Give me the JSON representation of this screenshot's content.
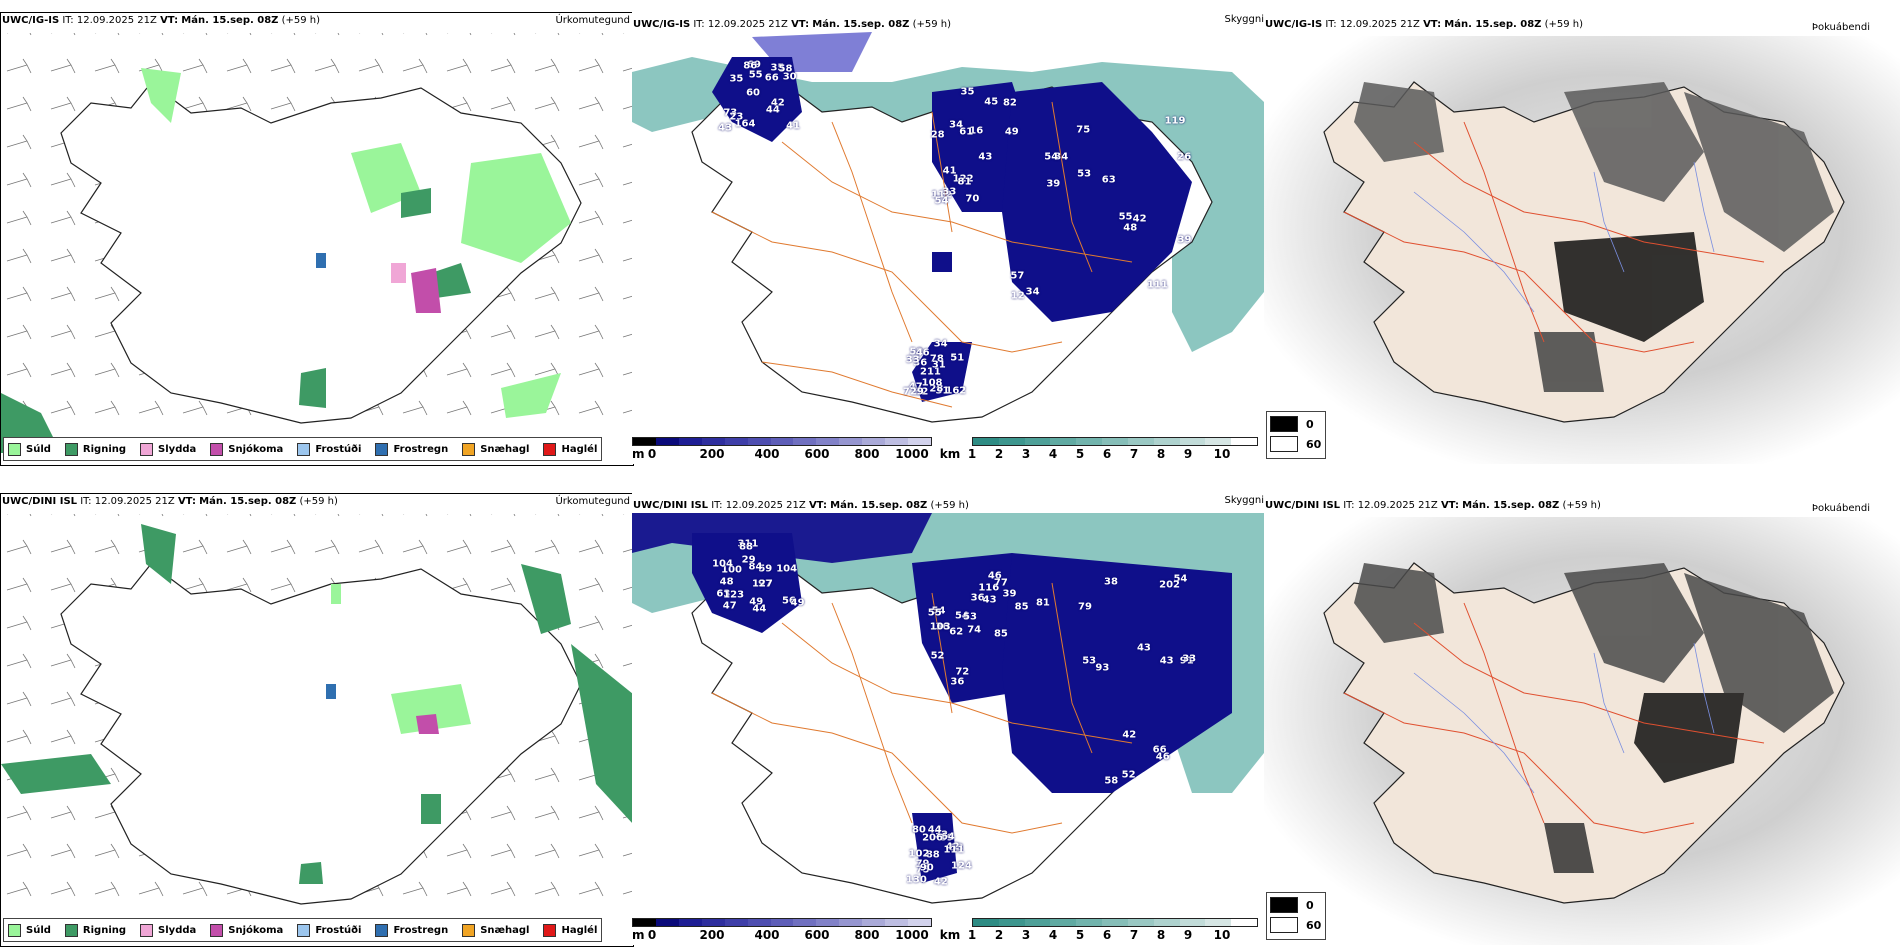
{
  "rows": [
    {
      "model": "UWC/IG-IS",
      "it_label": "IT:",
      "it": "12.09.2025 21Z",
      "vt_label": "VT:",
      "vt": "Mán. 15.sep. 08Z",
      "lead": "(+59 h)",
      "vis_numbers": [
        "41",
        "28",
        "119",
        "211",
        "66",
        "112",
        "75",
        "78",
        "73",
        "34",
        "57",
        "32",
        "55",
        "16",
        "42",
        "59",
        "69",
        "49",
        "55",
        "51",
        "60",
        "122",
        "53",
        "46",
        "35",
        "41",
        "111",
        "162",
        "42",
        "70",
        "34",
        "36",
        "44",
        "33",
        "26",
        "31",
        "43",
        "81",
        "63",
        "47",
        "30",
        "82",
        "48",
        "31",
        "23",
        "54",
        "12",
        "28",
        "58",
        "35",
        "39",
        "33",
        "35",
        "45",
        "34",
        "34",
        "86",
        "61",
        "39",
        "108",
        "164",
        "43",
        "54",
        "729"
      ],
      "colors": {
        "cloud_shade": "#5a5a5a"
      }
    },
    {
      "model": "UWC/DINI ISL",
      "it_label": "IT:",
      "it": "12.09.2025 21Z",
      "vt_label": "VT:",
      "vt": "Mán. 15.sep. 08Z",
      "lead": "(+59 h)",
      "vis_numbers": [
        "311",
        "116",
        "91",
        "88",
        "97",
        "36",
        "85",
        "89",
        "48",
        "36",
        "93",
        "130",
        "88",
        "62",
        "58",
        "42",
        "49",
        "46",
        "43",
        "79",
        "100",
        "103",
        "33",
        "53",
        "63",
        "54",
        "53",
        "42",
        "56",
        "52",
        "66",
        "32",
        "123",
        "54",
        "42",
        "124",
        "104",
        "72",
        "54",
        "44",
        "47",
        "36",
        "52",
        "80",
        "44",
        "43",
        "46",
        "64",
        "104",
        "74",
        "79",
        "111",
        "59",
        "77",
        "38",
        "75",
        "84",
        "53",
        "202",
        "206",
        "49",
        "85",
        "81",
        "90",
        "127",
        "55",
        "43",
        "102",
        "29",
        "39"
      ],
      "colors": {
        "cloud_shade": "#4a4a4a"
      }
    }
  ],
  "panels": {
    "precip": {
      "title": "Úrkomutegund"
    },
    "vis": {
      "title": "Skyggni"
    },
    "cloud": {
      "title": "Þokuábendi"
    }
  },
  "precip_legend": [
    {
      "label": "Súld",
      "color": "#9af59a"
    },
    {
      "label": "Rigning",
      "color": "#3e9a64"
    },
    {
      "label": "Slydda",
      "color": "#f0a6d6"
    },
    {
      "label": "Snjókoma",
      "color": "#c24eaa"
    },
    {
      "label": "Frostúði",
      "color": "#9cc6ee"
    },
    {
      "label": "Frostregn",
      "color": "#2f6fb0"
    },
    {
      "label": "Snæhagl",
      "color": "#f0a424"
    },
    {
      "label": "Haglél",
      "color": "#e01818"
    }
  ],
  "height_bar": {
    "unit": "m",
    "ticks": [
      "0",
      "200",
      "400",
      "600",
      "800",
      "1000"
    ],
    "colors": [
      "#000000",
      "#0a0a7a",
      "#1e1e94",
      "#2e2e9e",
      "#3e3ea8",
      "#4e4eb0",
      "#5e5eb8",
      "#7070c0",
      "#8282c8",
      "#9696d0",
      "#aaaad8",
      "#bebee2",
      "#d2d2ec"
    ]
  },
  "vis_bar": {
    "unit": "km",
    "ticks": [
      "1",
      "2",
      "3",
      "4",
      "5",
      "6",
      "7",
      "8",
      "9",
      "10"
    ],
    "colors": [
      "#2e8c84",
      "#3d968e",
      "#4ea098",
      "#60aaa2",
      "#72b4ad",
      "#86beb8",
      "#9ac8c3",
      "#aed2ce",
      "#c2dcd9",
      "#d6e6e4",
      "#ffffff"
    ]
  },
  "cloud_legend": [
    {
      "value": "0",
      "color": "#000000"
    },
    {
      "value": "60",
      "color": "#ffffff"
    }
  ]
}
